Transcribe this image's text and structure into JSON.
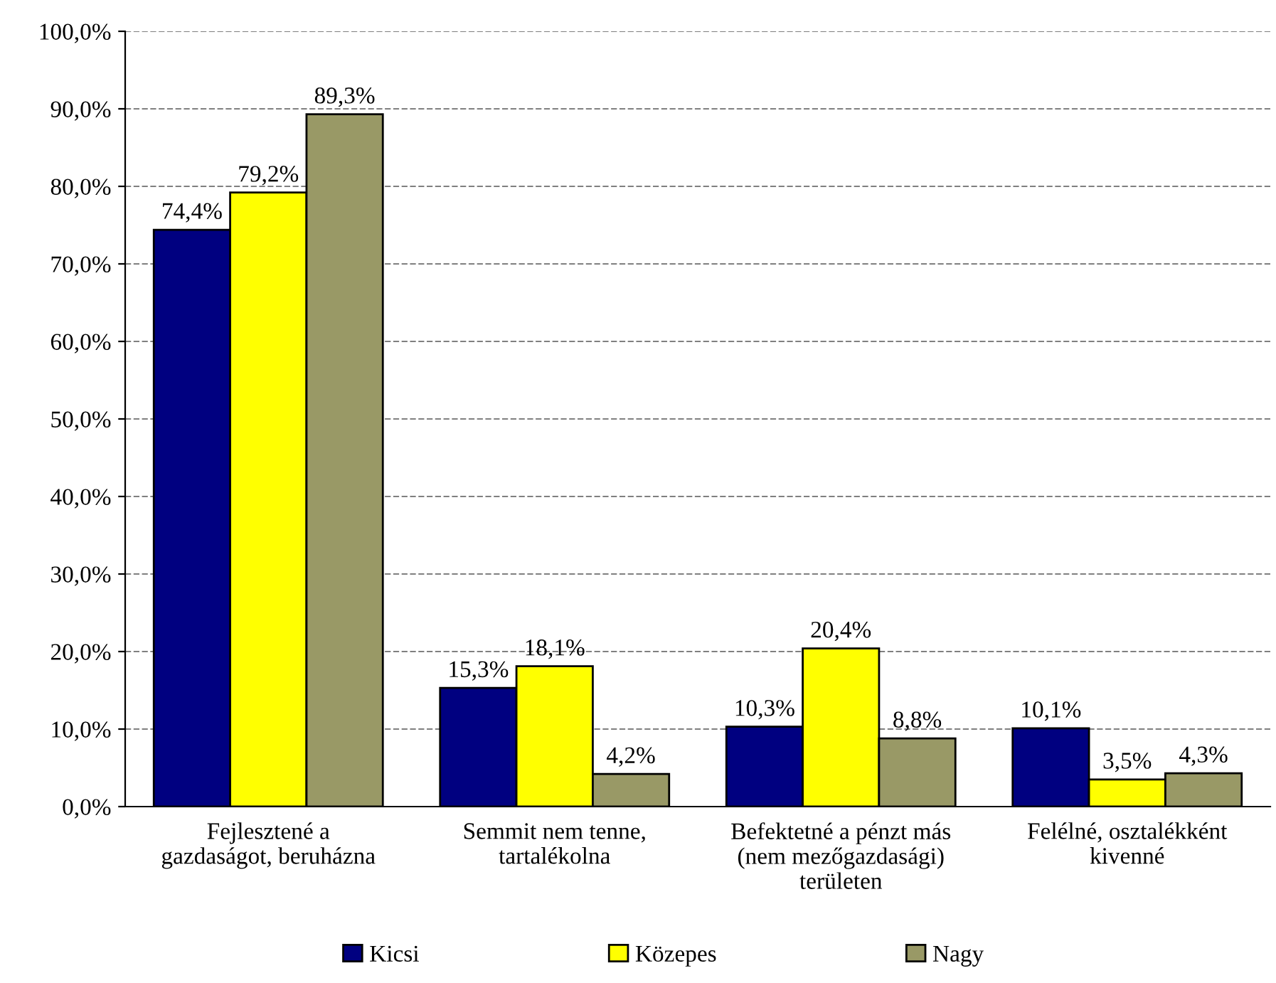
{
  "chart_data": {
    "type": "bar",
    "categories": [
      "Fejlesztené a\ngazdaságot, beruházna",
      "Semmit nem tenne,\ntartalékolna",
      "Befektetné a pénzt más\n(nem mezőgazdasági)\nterületen",
      "Felélné, osztalékként\nkivenné"
    ],
    "series": [
      {
        "name": "Kicsi",
        "color": "#000080",
        "values": [
          74.4,
          15.3,
          10.3,
          10.1
        ],
        "value_labels": [
          "74,4%",
          "15,3%",
          "10,3%",
          "10,1%"
        ]
      },
      {
        "name": "Közepes",
        "color": "#ffff00",
        "values": [
          79.2,
          18.1,
          20.4,
          3.5
        ],
        "value_labels": [
          "79,2%",
          "18,1%",
          "20,4%",
          "3,5%"
        ]
      },
      {
        "name": "Nagy",
        "color": "#999966",
        "values": [
          89.3,
          4.2,
          8.8,
          4.3
        ],
        "value_labels": [
          "89,3%",
          "4,2%",
          "8,8%",
          "4,3%"
        ]
      }
    ],
    "ylim": [
      0,
      100
    ],
    "yticks": [
      {
        "value": 0,
        "label": "0,0%"
      },
      {
        "value": 10,
        "label": "10,0%"
      },
      {
        "value": 20,
        "label": "20,0%"
      },
      {
        "value": 30,
        "label": "30,0%"
      },
      {
        "value": 40,
        "label": "40,0%"
      },
      {
        "value": 50,
        "label": "50,0%"
      },
      {
        "value": 60,
        "label": "60,0%"
      },
      {
        "value": 70,
        "label": "70,0%"
      },
      {
        "value": 80,
        "label": "80,0%"
      },
      {
        "value": 90,
        "label": "90,0%"
      },
      {
        "value": 100,
        "label": "100,0%"
      }
    ],
    "grid": "y",
    "line_style": "dashed",
    "legend": "bottom"
  }
}
